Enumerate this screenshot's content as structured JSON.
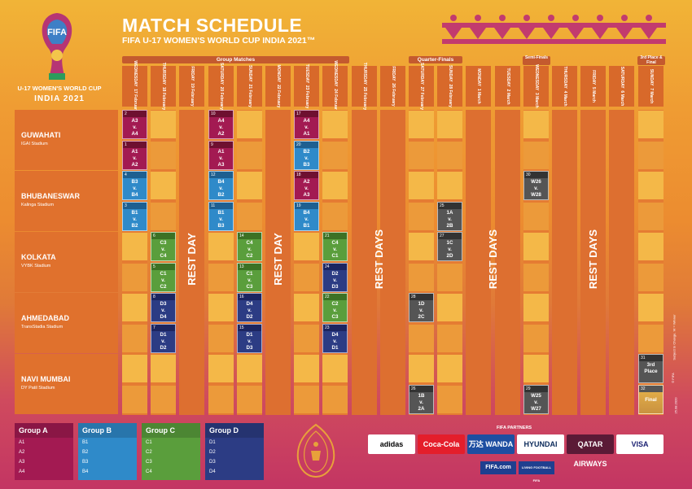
{
  "header": {
    "title": "MATCH SCHEDULE",
    "subtitle": "FIFA U-17 WOMEN'S WORLD CUP INDIA 2021™",
    "logo_text": "FIFA",
    "logo_caption": "U-17 WOMEN'S WORLD CUP",
    "logo_caption2": "INDIA 2021"
  },
  "stages": {
    "group": "Group Matches",
    "qf": "Quarter-Finals",
    "sf": "Semi-Finals",
    "final": "3rd Place & Final"
  },
  "days": [
    {
      "d": "WEDNESDAY",
      "date": "17 February"
    },
    {
      "d": "THURSDAY",
      "date": "18 February"
    },
    {
      "d": "FRIDAY",
      "date": "19 February"
    },
    {
      "d": "SATURDAY",
      "date": "20 February"
    },
    {
      "d": "SUNDAY",
      "date": "21 February"
    },
    {
      "d": "MONDAY",
      "date": "22 February"
    },
    {
      "d": "TUESDAY",
      "date": "23 February"
    },
    {
      "d": "WEDNESDAY",
      "date": "24 February"
    },
    {
      "d": "THURSDAY",
      "date": "25 February"
    },
    {
      "d": "FRIDAY",
      "date": "26 February"
    },
    {
      "d": "SATURDAY",
      "date": "27 February"
    },
    {
      "d": "SUNDAY",
      "date": "28 February"
    },
    {
      "d": "MONDAY",
      "date": "1 March"
    },
    {
      "d": "TUESDAY",
      "date": "2 March"
    },
    {
      "d": "WEDNESDAY",
      "date": "3 March"
    },
    {
      "d": "THURSDAY",
      "date": "4 March"
    },
    {
      "d": "FRIDAY",
      "date": "5 March"
    },
    {
      "d": "SATURDAY",
      "date": "6 March"
    },
    {
      "d": "SUNDAY",
      "date": "7 March"
    }
  ],
  "venues": [
    {
      "name": "GUWAHATI",
      "stadium": "IGAI Stadium"
    },
    {
      "name": "BHUBANESWAR",
      "stadium": "Kalinga Stadium"
    },
    {
      "name": "KOLKATA",
      "stadium": "VYBK Stadium"
    },
    {
      "name": "AHMEDABAD",
      "stadium": "TransStadia Stadium"
    },
    {
      "name": "NAVI MUMBAI",
      "stadium": "DY Patil Stadium"
    }
  ],
  "rest_labels": {
    "rest_day": "REST DAY",
    "rest_days": "REST DAYS"
  },
  "matches": [
    {
      "col": 0,
      "row": 0,
      "num": "2",
      "text": "A3\nv.\nA4",
      "g": "A"
    },
    {
      "col": 0,
      "row": 1,
      "num": "1",
      "text": "A1\nv.\nA2",
      "g": "A"
    },
    {
      "col": 0,
      "row": 2,
      "num": "4",
      "text": "B3\nv.\nB4",
      "g": "B"
    },
    {
      "col": 0,
      "row": 3,
      "num": "3",
      "text": "B1\nv.\nB2",
      "g": "B"
    },
    {
      "col": 1,
      "row": 4,
      "num": "6",
      "text": "C3\nv.\nC4",
      "g": "C"
    },
    {
      "col": 1,
      "row": 5,
      "num": "5",
      "text": "C1\nv.\nC2",
      "g": "C"
    },
    {
      "col": 1,
      "row": 6,
      "num": "8",
      "text": "D3\nv.\nD4",
      "g": "D"
    },
    {
      "col": 1,
      "row": 7,
      "num": "7",
      "text": "D1\nv.\nD2",
      "g": "D"
    },
    {
      "col": 3,
      "row": 0,
      "num": "10",
      "text": "A4\nv.\nA2",
      "g": "A"
    },
    {
      "col": 3,
      "row": 1,
      "num": "9",
      "text": "A1\nv.\nA3",
      "g": "A"
    },
    {
      "col": 3,
      "row": 2,
      "num": "12",
      "text": "B4\nv.\nB2",
      "g": "B"
    },
    {
      "col": 3,
      "row": 3,
      "num": "11",
      "text": "B1\nv.\nB3",
      "g": "B"
    },
    {
      "col": 4,
      "row": 4,
      "num": "14",
      "text": "C4\nv.\nC2",
      "g": "C"
    },
    {
      "col": 4,
      "row": 5,
      "num": "13",
      "text": "C1\nv.\nC3",
      "g": "C"
    },
    {
      "col": 4,
      "row": 6,
      "num": "16",
      "text": "D4\nv.\nD2",
      "g": "D"
    },
    {
      "col": 4,
      "row": 7,
      "num": "15",
      "text": "D1\nv.\nD3",
      "g": "D"
    },
    {
      "col": 6,
      "row": 0,
      "num": "17",
      "text": "A4\nv.\nA1",
      "g": "A"
    },
    {
      "col": 6,
      "row": 1,
      "num": "20",
      "text": "B2\nv.\nB3",
      "g": "B"
    },
    {
      "col": 6,
      "row": 2,
      "num": "18",
      "text": "A2\nv.\nA3",
      "g": "A"
    },
    {
      "col": 6,
      "row": 3,
      "num": "19",
      "text": "B4\nv.\nB1",
      "g": "B"
    },
    {
      "col": 7,
      "row": 4,
      "num": "21",
      "text": "C4\nv.\nC1",
      "g": "C"
    },
    {
      "col": 7,
      "row": 5,
      "num": "24",
      "text": "D2\nv.\nD3",
      "g": "D"
    },
    {
      "col": 7,
      "row": 6,
      "num": "22",
      "text": "C2\nv.\nC3",
      "g": "C"
    },
    {
      "col": 7,
      "row": 7,
      "num": "23",
      "text": "D4\nv.\nD1",
      "g": "D"
    },
    {
      "col": 11,
      "row": 3,
      "num": "25",
      "text": "1A\nv.\n2B",
      "g": "K"
    },
    {
      "col": 11,
      "row": 4,
      "num": "27",
      "text": "1C\nv.\n2D",
      "g": "K"
    },
    {
      "col": 10,
      "row": 6,
      "num": "28",
      "text": "1D\nv.\n2C",
      "g": "K"
    },
    {
      "col": 10,
      "row": 9,
      "num": "26",
      "text": "1B\nv.\n2A",
      "g": "K"
    },
    {
      "col": 14,
      "row": 2,
      "num": "30",
      "text": "W26\nv.\nW28",
      "g": "K"
    },
    {
      "col": 14,
      "row": 9,
      "num": "29",
      "text": "W25\nv.\nW27",
      "g": "K"
    },
    {
      "col": 18,
      "row": 8,
      "num": "31",
      "text": "3rd\nPlace",
      "g": "K"
    },
    {
      "col": 18,
      "row": 9,
      "num": "32",
      "text": "Final",
      "g": "F"
    }
  ],
  "groups": [
    {
      "name": "Group A",
      "items": [
        "A1",
        "A2",
        "A3",
        "A4"
      ],
      "color": "#a31a52"
    },
    {
      "name": "Group B",
      "items": [
        "B1",
        "B2",
        "B3",
        "B4"
      ],
      "color": "#2f8ac9"
    },
    {
      "name": "Group C",
      "items": [
        "C1",
        "C2",
        "C3",
        "C4"
      ],
      "color": "#5a9e3c"
    },
    {
      "name": "Group D",
      "items": [
        "D1",
        "D2",
        "D3",
        "D4"
      ],
      "color": "#2c3c84"
    }
  ],
  "partners": {
    "title": "FIFA PARTNERS",
    "logos": [
      "adidas",
      "Coca-Cola",
      "万达 WANDA",
      "HYUNDAI",
      "QATAR AIRWAYS",
      "VISA"
    ],
    "bottom": [
      "FIFA.com",
      "LIVING FOOTBALL FIFA"
    ]
  },
  "footnote": "Subject to Change. W = Winner",
  "copyright": "© FIFA",
  "date_code": "25.08.2020"
}
